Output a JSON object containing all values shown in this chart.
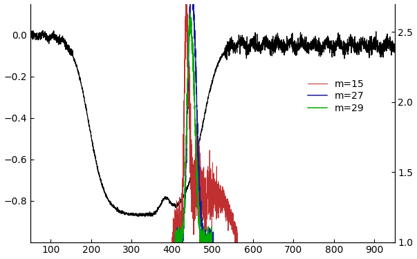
{
  "xlim": [
    50,
    950
  ],
  "ylim_left": [
    -1.0,
    0.15
  ],
  "ylim_right": [
    1.0,
    2.7
  ],
  "xticks": [
    100,
    200,
    300,
    400,
    500,
    600,
    700,
    800,
    900
  ],
  "yticks_left": [
    0.0,
    -0.2,
    -0.4,
    -0.6,
    -0.8
  ],
  "yticks_right": [
    1.0,
    1.5,
    2.0,
    2.5
  ],
  "legend": [
    {
      "label": "m=15",
      "color": "#c03030"
    },
    {
      "label": "m=27",
      "color": "#1a1a99"
    },
    {
      "label": "m=29",
      "color": "#00aa00"
    }
  ],
  "background_color": "#ffffff",
  "line_color_black": "#000000"
}
